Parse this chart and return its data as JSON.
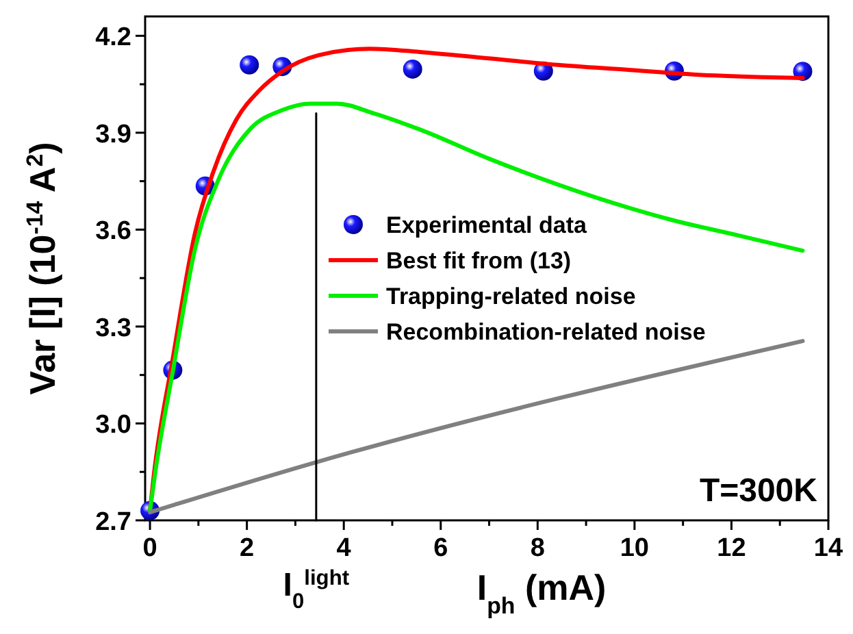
{
  "chart_data": {
    "type": "line",
    "xlabel": "I$_{ph}$ (mA)",
    "ylabel": "Var [I] (10$^{-14}$ A$^{2}$)",
    "xlim": [
      -0.1,
      14
    ],
    "ylim": [
      2.7,
      4.26
    ],
    "xticks": [
      0,
      {
        "value": 1,
        "label": null
      },
      2,
      {
        "value": 3,
        "label": null
      },
      4,
      {
        "value": 5,
        "label": null
      },
      6,
      {
        "value": 7,
        "label": null
      },
      8,
      {
        "value": 9,
        "label": null
      },
      10,
      {
        "value": 11,
        "label": null
      },
      12,
      {
        "value": 13,
        "label": null
      },
      14
    ],
    "yticks": [
      {
        "value": 2.7,
        "label": "2.7"
      },
      {
        "value": 2.85,
        "label": null
      },
      {
        "value": 3.0,
        "label": "3.0"
      },
      {
        "value": 3.15,
        "label": null
      },
      {
        "value": 3.3,
        "label": "3.3"
      },
      {
        "value": 3.45,
        "label": null
      },
      {
        "value": 3.6,
        "label": "3.6"
      },
      {
        "value": 3.75,
        "label": null
      },
      {
        "value": 3.9,
        "label": "3.9"
      },
      {
        "value": 4.05,
        "label": null
      },
      {
        "value": 4.2,
        "label": "4.2"
      }
    ],
    "grid": false,
    "legend": "right",
    "series": [
      {
        "name": "Experimental data",
        "type": "scatter",
        "marker": "circle",
        "color": "#1a1aff",
        "x": [
          0,
          0.47,
          1.14,
          2.05,
          2.73,
          5.42,
          8.12,
          10.82,
          13.47
        ],
        "values": [
          2.73,
          3.165,
          3.735,
          4.11,
          4.105,
          4.097,
          4.091,
          4.091,
          4.09
        ]
      },
      {
        "name": "Best fit from (13)",
        "color": "#ff0000",
        "x": [
          0,
          0.08,
          0.47,
          0.93,
          1.31,
          1.78,
          2.25,
          2.73,
          3.48,
          4.53,
          5.57,
          6.99,
          8.41,
          9.83,
          11.25,
          12.67,
          13.47
        ],
        "values": [
          2.73,
          2.84,
          3.2,
          3.59,
          3.78,
          3.94,
          4.03,
          4.09,
          4.14,
          4.16,
          4.15,
          4.13,
          4.11,
          4.095,
          4.08,
          4.072,
          4.069
        ]
      },
      {
        "name": "Trapping-related noise",
        "color": "#00ee00",
        "x": [
          0,
          0.12,
          0.47,
          0.93,
          1.4,
          2.06,
          2.73,
          3.3,
          3.86,
          4.62,
          5.57,
          6.99,
          8.41,
          9.83,
          10.77,
          12.2,
          13.47
        ],
        "values": [
          2.73,
          2.86,
          3.16,
          3.54,
          3.75,
          3.91,
          3.97,
          3.99,
          3.99,
          3.96,
          3.91,
          3.82,
          3.74,
          3.67,
          3.63,
          3.58,
          3.535
        ]
      },
      {
        "name": "Recombination-related noise",
        "color": "#808080",
        "x": [
          0,
          3.43,
          13.47
        ],
        "values": [
          2.725,
          2.88,
          3.255
        ]
      },
      {
        "color": "#000000",
        "x": [
          3.43,
          3.43
        ],
        "values": [
          2.7,
          3.96
        ]
      }
    ],
    "annotations": [
      {
        "text": "I$_{0}$$^{light}$",
        "x": 3.43,
        "y": 2.7
      },
      "T=300K"
    ]
  }
}
